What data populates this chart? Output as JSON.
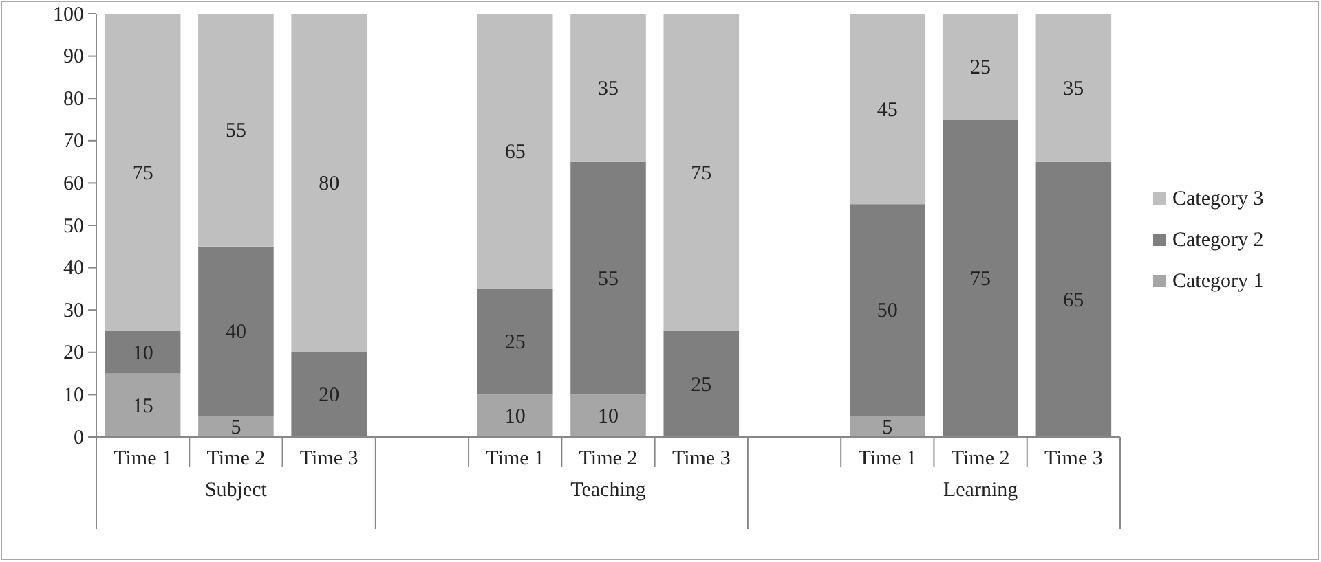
{
  "chart_data": {
    "type": "bar",
    "stacked": true,
    "categories": [
      "Time 1",
      "Time 2",
      "Time 3",
      null,
      "Time 1",
      "Time 2",
      "Time 3",
      null,
      "Time 1",
      "Time 2",
      "Time 3"
    ],
    "series": [
      {
        "name": "Category 1",
        "color": "#a6a6a6",
        "values": [
          15,
          5,
          0,
          null,
          10,
          10,
          0,
          null,
          5,
          0,
          0
        ],
        "value_labels": [
          "15",
          "5",
          null,
          null,
          "10",
          "10",
          null,
          null,
          "5",
          null,
          null
        ]
      },
      {
        "name": "Category 2",
        "color": "#7f7f7f",
        "values": [
          10,
          40,
          20,
          null,
          25,
          55,
          25,
          null,
          50,
          75,
          65
        ],
        "value_labels": [
          "10",
          "40",
          "20",
          null,
          "25",
          "55",
          "25",
          null,
          "50",
          "75",
          "65"
        ]
      },
      {
        "name": "Category 3",
        "color": "#bfbfbf",
        "values": [
          75,
          55,
          80,
          null,
          65,
          35,
          75,
          null,
          45,
          25,
          35
        ],
        "value_labels": [
          "75",
          "55",
          "80",
          null,
          "65",
          "35",
          "75",
          null,
          "45",
          "25",
          "35"
        ]
      }
    ],
    "annotations": [
      "Subject",
      "Teaching",
      "Learning"
    ],
    "ylim": [
      0,
      100
    ],
    "yticks": [
      0,
      10,
      20,
      30,
      40,
      50,
      60,
      70,
      80,
      90,
      100
    ],
    "grid": false,
    "legend": "right"
  }
}
